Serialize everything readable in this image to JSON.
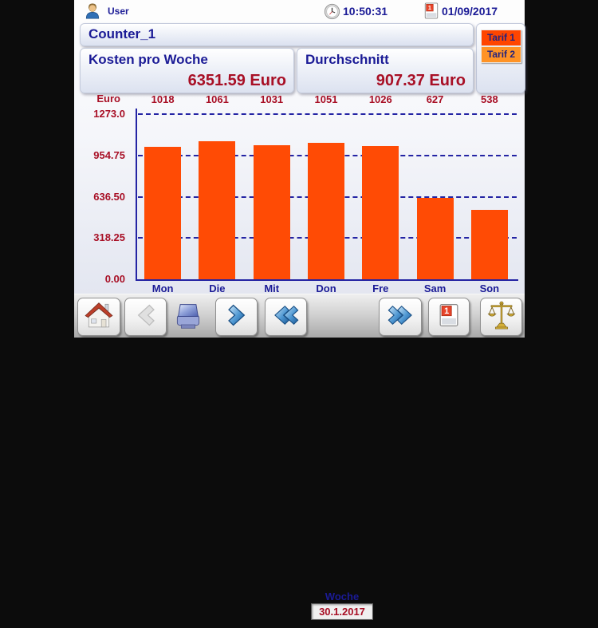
{
  "header": {
    "user_label": "User",
    "time": "10:50:31",
    "date": "01/09/2017"
  },
  "title_bar": {
    "title": "Counter_1"
  },
  "tarif": {
    "tarif1_label": "Tarif 1",
    "tarif2_label": "Tarif 2"
  },
  "stats": {
    "kosten_label": "Kosten pro Woche",
    "kosten_value": "6351.59 Euro",
    "durchschnitt_label": "Durchschnitt",
    "durchschnitt_value": "907.37 Euro"
  },
  "chart_data": {
    "type": "bar",
    "title": "",
    "unit_label": "Euro",
    "categories": [
      "Mon",
      "Die",
      "Mit",
      "Don",
      "Fre",
      "Sam",
      "Son"
    ],
    "values": [
      1018,
      1061,
      1031,
      1051,
      1026,
      627,
      538
    ],
    "value_labels": [
      "1018",
      "1061",
      "1031",
      "1051",
      "1026",
      "627",
      "538"
    ],
    "y_ticks": [
      1273.0,
      954.75,
      636.5,
      318.25,
      0.0
    ],
    "y_tick_labels": [
      "1273.0",
      "954.75",
      "636.50",
      "318.25",
      "0.00"
    ],
    "ylim": [
      0,
      1273.0
    ],
    "grid": "horizontal-dashed",
    "legend": "none"
  },
  "toolbar": {
    "woche_label": "Woche",
    "woche_value": "30.1.2017"
  },
  "icons": {
    "user-icon": "person",
    "clock-icon": "analog-clock",
    "calendar-icon": "calendar-page",
    "home-icon": "house",
    "prev-icon": "chevron-left-disabled",
    "print-icon": "printer",
    "next-icon": "chevron-right",
    "fast-prev-icon": "double-chevron-left",
    "fast-next-icon": "double-chevron-right",
    "calendar-button-icon": "calendar-page",
    "tariff-compare-icon": "balance-scales"
  },
  "colors": {
    "navy": "#1b1b96",
    "dark_red": "#a80f25",
    "bar_orange": "#ff4b05",
    "grid_navy": "#2424a4",
    "tarif1_bg": "#ff4500",
    "tarif2_bg": "#ff9326"
  }
}
